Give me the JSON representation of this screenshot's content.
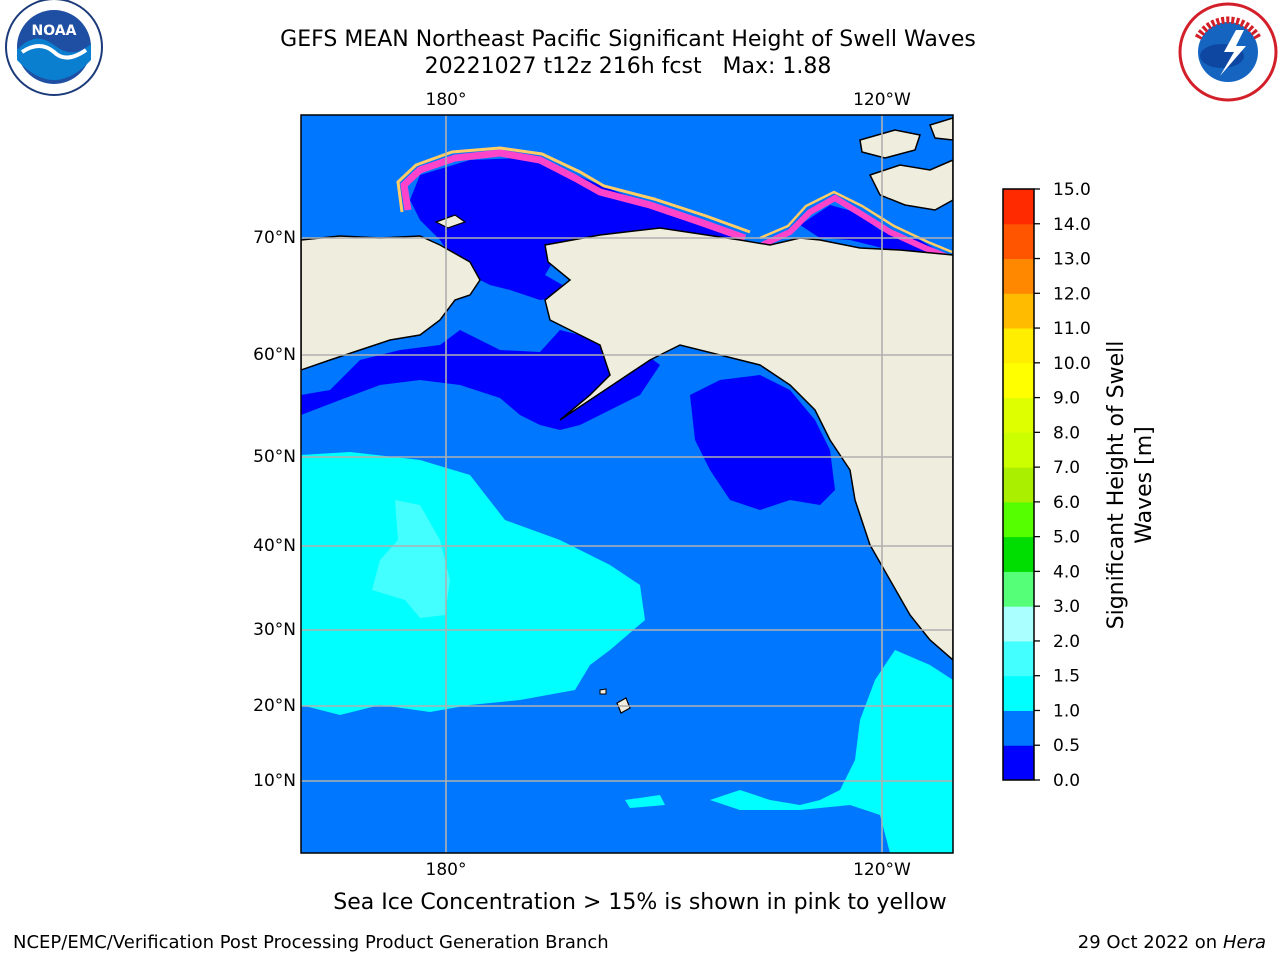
{
  "title": {
    "line1": "GEFS MEAN Northeast Pacific Significant Height of Swell Waves",
    "line2": "20221027 t12z 216h fcst   Max: 1.88"
  },
  "map": {
    "lon_labels_top": [
      "180°",
      "120°W"
    ],
    "lon_labels_bottom": [
      "180°",
      "120°W"
    ],
    "lat_labels": [
      "70°N",
      "60°N",
      "50°N",
      "40°N",
      "30°N",
      "20°N",
      "10°N"
    ],
    "land_color": "#efeddd",
    "ice_colors": [
      "#ff44cc",
      "#ff99bb",
      "#ffcc66",
      "#ffee00"
    ]
  },
  "colorbar": {
    "label_line1": "Significant Height of Swell",
    "label_line2": "Waves [m]",
    "ticks": [
      "0.0",
      "0.5",
      "1.0",
      "1.5",
      "2.0",
      "3.0",
      "4.0",
      "5.0",
      "6.0",
      "7.0",
      "8.0",
      "9.0",
      "10.0",
      "11.0",
      "12.0",
      "13.0",
      "14.0",
      "15.0"
    ],
    "colors": [
      "#0000ff",
      "#0077ff",
      "#00ffff",
      "#44ffff",
      "#aaffff",
      "#55ff77",
      "#00dd00",
      "#55ff00",
      "#aaee00",
      "#ccff00",
      "#ddff00",
      "#ffff00",
      "#ffee00",
      "#ffbb00",
      "#ff8800",
      "#ff5500",
      "#ff2a00",
      "#ff0000"
    ]
  },
  "caption": "Sea Ice Concentration > 15% is shown in pink to yellow",
  "footer": {
    "left": "NCEP/EMC/Verification Post Processing Product Generation Branch",
    "right_prefix": "29 Oct 2022 on ",
    "right_machine": "Hera"
  },
  "logos": {
    "noaa_text": "NOAA",
    "nws_text": "NATIONAL WEATHER SERVICE"
  }
}
